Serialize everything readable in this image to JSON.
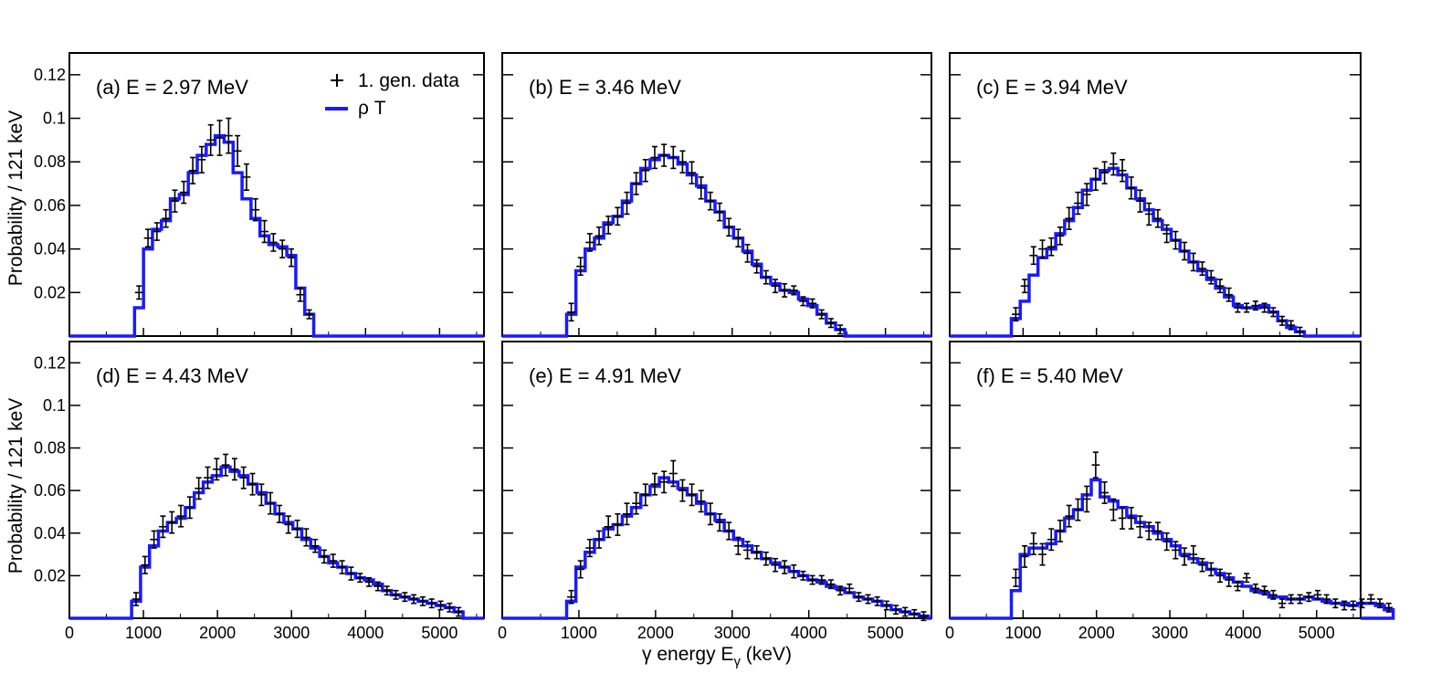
{
  "figure": {
    "ylabel": "Probability / 121 keV",
    "xlabel_prefix": "γ energy E",
    "xlabel_sub": "γ",
    "xlabel_suffix": " (keV)",
    "colors": {
      "model": "#1a1aff",
      "data": "#000000",
      "frame": "#000000"
    },
    "legend": {
      "data_label": "1. gen. data",
      "model_label": "ρ T",
      "placement": "top-right of panel (a)"
    }
  },
  "chart_data": {
    "type": "line",
    "title": "",
    "xlim": [
      0,
      5600
    ],
    "ylim": [
      0,
      0.13
    ],
    "bin_width": 121,
    "x_ticks": [
      0,
      1000,
      2000,
      3000,
      4000,
      5000
    ],
    "x_tick_labels": [
      "0",
      "1000",
      "2000",
      "3000",
      "4000",
      "5000"
    ],
    "x_tick_labels_first_panel": [
      "0",
      "1000",
      "2000",
      "3000",
      "4000",
      "5000"
    ],
    "x_tick_labels_other_panels": [
      "0",
      "1000",
      "2000",
      "3000",
      "4000",
      "5000"
    ],
    "y_ticks": [
      0.02,
      0.04,
      0.06,
      0.08,
      0.1,
      0.12
    ],
    "y_tick_labels": [
      "0.02",
      "0.04",
      "0.06",
      "0.08",
      "0.1",
      "0.12"
    ],
    "series_names": [
      "1. gen. data",
      "ρ T"
    ],
    "panels": [
      {
        "label": "(a) E = 2.97 MeV",
        "x_start": 880,
        "model": [
          0.013,
          0.04,
          0.049,
          0.053,
          0.063,
          0.065,
          0.075,
          0.083,
          0.088,
          0.092,
          0.089,
          0.075,
          0.063,
          0.054,
          0.046,
          0.042,
          0.041,
          0.037,
          0.022,
          0.01
        ],
        "data": [
          0.02,
          0.045,
          0.048,
          0.054,
          0.062,
          0.066,
          0.076,
          0.081,
          0.09,
          0.091,
          0.092,
          0.085,
          0.073,
          0.058,
          0.048,
          0.043,
          0.04,
          0.036,
          0.019,
          0.01
        ],
        "err": [
          0.003,
          0.004,
          0.004,
          0.004,
          0.005,
          0.005,
          0.006,
          0.006,
          0.007,
          0.008,
          0.008,
          0.007,
          0.006,
          0.005,
          0.005,
          0.004,
          0.004,
          0.004,
          0.003,
          0.002
        ]
      },
      {
        "label": "(b) E = 3.46 MeV",
        "x_start": 840,
        "model": [
          0.01,
          0.03,
          0.04,
          0.045,
          0.052,
          0.055,
          0.062,
          0.07,
          0.077,
          0.081,
          0.083,
          0.082,
          0.079,
          0.074,
          0.069,
          0.062,
          0.057,
          0.05,
          0.045,
          0.039,
          0.033,
          0.027,
          0.024,
          0.021,
          0.02,
          0.017,
          0.014,
          0.01,
          0.006,
          0.003
        ],
        "data": [
          0.011,
          0.032,
          0.043,
          0.046,
          0.051,
          0.055,
          0.061,
          0.07,
          0.076,
          0.082,
          0.083,
          0.082,
          0.08,
          0.075,
          0.068,
          0.062,
          0.057,
          0.05,
          0.045,
          0.038,
          0.032,
          0.027,
          0.023,
          0.021,
          0.021,
          0.016,
          0.015,
          0.01,
          0.006,
          0.003
        ],
        "err": [
          0.004,
          0.004,
          0.004,
          0.004,
          0.004,
          0.004,
          0.005,
          0.005,
          0.005,
          0.005,
          0.005,
          0.005,
          0.005,
          0.005,
          0.005,
          0.004,
          0.004,
          0.004,
          0.004,
          0.004,
          0.003,
          0.003,
          0.003,
          0.003,
          0.002,
          0.002,
          0.002,
          0.002,
          0.002,
          0.002
        ]
      },
      {
        "label": "(c) E = 3.94 MeV",
        "x_start": 840,
        "model": [
          0.008,
          0.016,
          0.028,
          0.036,
          0.04,
          0.047,
          0.053,
          0.059,
          0.067,
          0.072,
          0.076,
          0.077,
          0.074,
          0.068,
          0.063,
          0.058,
          0.053,
          0.049,
          0.044,
          0.039,
          0.034,
          0.03,
          0.026,
          0.022,
          0.018,
          0.014,
          0.013,
          0.013,
          0.014,
          0.011,
          0.007,
          0.004,
          0.002
        ],
        "data": [
          0.01,
          0.023,
          0.037,
          0.04,
          0.041,
          0.046,
          0.054,
          0.061,
          0.065,
          0.072,
          0.075,
          0.079,
          0.076,
          0.068,
          0.062,
          0.056,
          0.054,
          0.047,
          0.044,
          0.039,
          0.034,
          0.031,
          0.027,
          0.023,
          0.019,
          0.013,
          0.013,
          0.014,
          0.013,
          0.011,
          0.007,
          0.005,
          0.002
        ],
        "err": [
          0.003,
          0.003,
          0.004,
          0.004,
          0.004,
          0.004,
          0.005,
          0.005,
          0.005,
          0.005,
          0.005,
          0.005,
          0.005,
          0.005,
          0.005,
          0.005,
          0.004,
          0.004,
          0.004,
          0.004,
          0.004,
          0.003,
          0.003,
          0.003,
          0.003,
          0.002,
          0.002,
          0.002,
          0.002,
          0.002,
          0.002,
          0.002,
          0.002
        ]
      },
      {
        "label": "(d) E = 4.43 MeV",
        "x_start": 840,
        "model": [
          0.008,
          0.024,
          0.034,
          0.041,
          0.045,
          0.047,
          0.052,
          0.059,
          0.064,
          0.067,
          0.071,
          0.069,
          0.067,
          0.063,
          0.059,
          0.054,
          0.049,
          0.045,
          0.042,
          0.037,
          0.033,
          0.029,
          0.026,
          0.024,
          0.021,
          0.019,
          0.018,
          0.016,
          0.013,
          0.011,
          0.01,
          0.009,
          0.008,
          0.007,
          0.006,
          0.005,
          0.003
        ],
        "data": [
          0.009,
          0.025,
          0.037,
          0.043,
          0.045,
          0.048,
          0.052,
          0.061,
          0.066,
          0.07,
          0.072,
          0.07,
          0.066,
          0.063,
          0.058,
          0.054,
          0.049,
          0.044,
          0.042,
          0.038,
          0.034,
          0.029,
          0.027,
          0.024,
          0.021,
          0.019,
          0.017,
          0.015,
          0.013,
          0.011,
          0.01,
          0.009,
          0.008,
          0.007,
          0.006,
          0.005,
          0.003
        ],
        "err": [
          0.003,
          0.004,
          0.004,
          0.005,
          0.005,
          0.005,
          0.005,
          0.005,
          0.005,
          0.005,
          0.005,
          0.005,
          0.005,
          0.005,
          0.005,
          0.005,
          0.004,
          0.004,
          0.004,
          0.004,
          0.003,
          0.003,
          0.003,
          0.003,
          0.003,
          0.002,
          0.002,
          0.002,
          0.002,
          0.002,
          0.002,
          0.002,
          0.002,
          0.002,
          0.002,
          0.002,
          0.002
        ]
      },
      {
        "label": "(e) E = 4.91 MeV",
        "x_start": 840,
        "model": [
          0.008,
          0.024,
          0.031,
          0.037,
          0.042,
          0.044,
          0.048,
          0.052,
          0.058,
          0.062,
          0.066,
          0.064,
          0.061,
          0.058,
          0.054,
          0.049,
          0.046,
          0.041,
          0.037,
          0.034,
          0.031,
          0.028,
          0.026,
          0.024,
          0.022,
          0.02,
          0.018,
          0.017,
          0.015,
          0.014,
          0.012,
          0.01,
          0.009,
          0.008,
          0.006,
          0.004,
          0.003,
          0.002,
          0.001
        ],
        "data": [
          0.01,
          0.023,
          0.033,
          0.037,
          0.043,
          0.044,
          0.049,
          0.054,
          0.058,
          0.063,
          0.064,
          0.068,
          0.06,
          0.058,
          0.055,
          0.049,
          0.045,
          0.041,
          0.034,
          0.032,
          0.031,
          0.028,
          0.025,
          0.024,
          0.022,
          0.02,
          0.018,
          0.018,
          0.016,
          0.013,
          0.014,
          0.01,
          0.009,
          0.008,
          0.006,
          0.004,
          0.003,
          0.002,
          0.001
        ],
        "err": [
          0.003,
          0.004,
          0.004,
          0.004,
          0.005,
          0.005,
          0.005,
          0.005,
          0.005,
          0.005,
          0.005,
          0.006,
          0.005,
          0.005,
          0.005,
          0.005,
          0.004,
          0.004,
          0.004,
          0.004,
          0.003,
          0.003,
          0.003,
          0.003,
          0.003,
          0.002,
          0.002,
          0.002,
          0.002,
          0.002,
          0.002,
          0.002,
          0.002,
          0.002,
          0.002,
          0.002,
          0.002,
          0.002,
          0.002
        ]
      },
      {
        "label": "(f) E = 5.40 MeV",
        "x_start": 840,
        "model": [
          0.013,
          0.03,
          0.033,
          0.033,
          0.035,
          0.041,
          0.047,
          0.051,
          0.058,
          0.065,
          0.057,
          0.055,
          0.052,
          0.048,
          0.045,
          0.043,
          0.04,
          0.037,
          0.034,
          0.03,
          0.028,
          0.026,
          0.023,
          0.021,
          0.019,
          0.017,
          0.015,
          0.013,
          0.012,
          0.01,
          0.01,
          0.009,
          0.009,
          0.01,
          0.009,
          0.008,
          0.007,
          0.007,
          0.006,
          0.007,
          0.007,
          0.006,
          0.004
        ],
        "data": [
          0.019,
          0.029,
          0.035,
          0.03,
          0.037,
          0.041,
          0.048,
          0.051,
          0.056,
          0.072,
          0.059,
          0.051,
          0.047,
          0.047,
          0.043,
          0.041,
          0.041,
          0.036,
          0.032,
          0.029,
          0.03,
          0.025,
          0.023,
          0.02,
          0.018,
          0.015,
          0.019,
          0.014,
          0.013,
          0.011,
          0.007,
          0.009,
          0.009,
          0.01,
          0.011,
          0.009,
          0.007,
          0.006,
          0.006,
          0.007,
          0.009,
          0.007,
          0.005
        ],
        "err": [
          0.004,
          0.005,
          0.005,
          0.005,
          0.005,
          0.005,
          0.005,
          0.005,
          0.006,
          0.006,
          0.005,
          0.005,
          0.005,
          0.005,
          0.005,
          0.004,
          0.004,
          0.004,
          0.004,
          0.004,
          0.004,
          0.003,
          0.003,
          0.003,
          0.003,
          0.002,
          0.002,
          0.002,
          0.002,
          0.002,
          0.002,
          0.002,
          0.002,
          0.002,
          0.002,
          0.002,
          0.002,
          0.002,
          0.002,
          0.002,
          0.002,
          0.002,
          0.002
        ]
      }
    ]
  }
}
